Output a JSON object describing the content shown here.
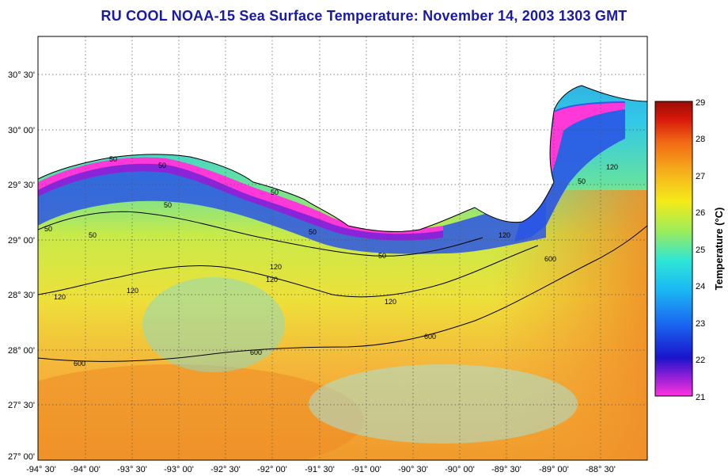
{
  "title": "RU COOL  NOAA-15  Sea Surface Temperature:  November 14, 2003 1303 GMT",
  "map": {
    "x_ticks": [
      "-94° 30'",
      "-94° 00'",
      "-93° 30'",
      "-93° 00'",
      "-92° 30'",
      "-92° 00'",
      "-91° 30'",
      "-91° 00'",
      "-90° 30'",
      "-90° 00'",
      "-89° 30'",
      "-89° 00'",
      "-88° 30'"
    ],
    "y_ticks": [
      "30° 30'",
      "30° 00'",
      "29° 30'",
      "29° 00'",
      "28° 30'",
      "28° 00'",
      "27° 30'",
      "27° 00'"
    ],
    "x_range": [
      -94.5,
      -88.0
    ],
    "y_range": [
      27.0,
      30.85
    ],
    "grid": "dotted",
    "land_color": "#ffffff",
    "isobath_labels": [
      "50",
      "50",
      "50",
      "50",
      "50",
      "50",
      "50",
      "50",
      "50",
      "120",
      "120",
      "120",
      "120",
      "120",
      "120",
      "120",
      "600",
      "600",
      "600",
      "600"
    ]
  },
  "colorbar": {
    "label": "Temperature (°C)",
    "ticks": [
      "29",
      "28",
      "27",
      "26",
      "25",
      "24",
      "23",
      "22",
      "21"
    ],
    "range": [
      21,
      29
    ],
    "colors": [
      "#ff33dd",
      "#9a20d8",
      "#1a14cc",
      "#1a63f0",
      "#1ab8f5",
      "#2ee6d6",
      "#9cec5a",
      "#f4ea1a",
      "#f6b01c",
      "#f26a14",
      "#d8180c",
      "#9a0c04"
    ]
  }
}
